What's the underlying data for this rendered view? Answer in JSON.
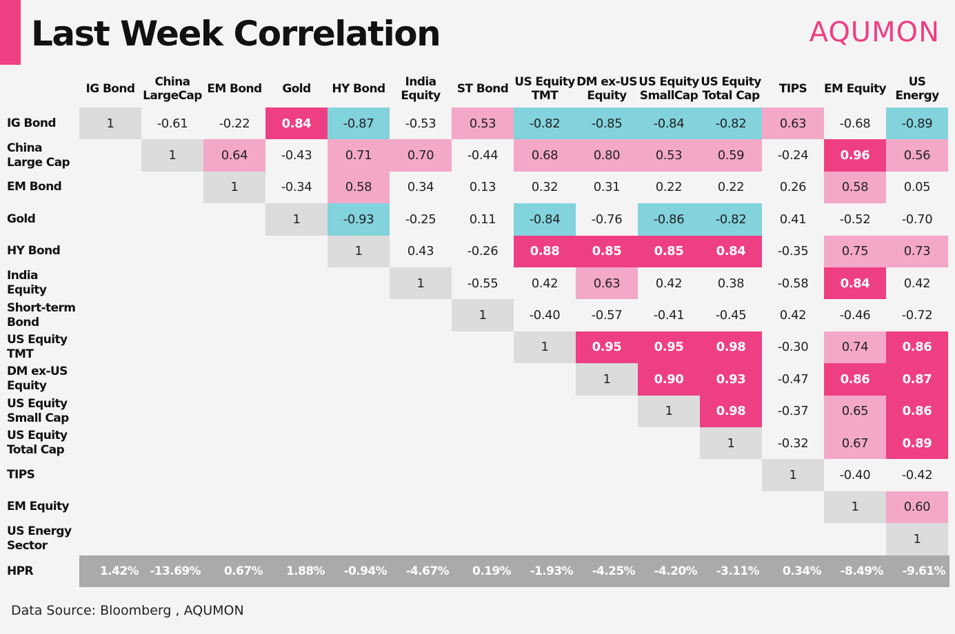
{
  "header": {
    "title": "Last Week Correlation",
    "brand": "AQUMON"
  },
  "colors": {
    "accent": "#ee3f82",
    "positive_strong": "#ee3f82",
    "positive_light": "#f4a8c8",
    "negative": "#82d3dc",
    "diagonal": "#dcdcdc",
    "hpr_band": "#aaaaaa"
  },
  "chart_data": {
    "type": "table",
    "title": "Last Week Correlation",
    "column_headers": [
      "IG Bond",
      "China LargeCap",
      "EM Bond",
      "Gold",
      "HY Bond",
      "India Equity",
      "ST Bond",
      "US Equity TMT",
      "DM ex-US Equity",
      "US Equity SmallCap",
      "US Equity Total Cap",
      "TIPS",
      "EM Equity",
      "US Energy"
    ],
    "row_headers": [
      "IG Bond",
      "China Large Cap",
      "EM Bond",
      "Gold",
      "HY Bond",
      "India Equity",
      "Short-term Bond",
      "US Equity TMT",
      "DM ex-US Equity",
      "US Equity Small Cap",
      "US Equity Total Cap",
      "TIPS",
      "EM Equity",
      "US Energy Sector"
    ],
    "rows": [
      [
        "1",
        "-0.61",
        "-0.22",
        "0.84",
        "-0.87",
        "-0.53",
        "0.53",
        "-0.82",
        "-0.85",
        "-0.84",
        "-0.82",
        "0.63",
        "-0.68",
        "-0.89"
      ],
      [
        "",
        "1",
        "0.64",
        "-0.43",
        "0.71",
        "0.70",
        "-0.44",
        "0.68",
        "0.80",
        "0.53",
        "0.59",
        "-0.24",
        "0.96",
        "0.56"
      ],
      [
        "",
        "",
        "1",
        "-0.34",
        "0.58",
        "0.34",
        "0.13",
        "0.32",
        "0.31",
        "0.22",
        "0.22",
        "0.26",
        "0.58",
        "0.05"
      ],
      [
        "",
        "",
        "",
        "1",
        "-0.93",
        "-0.25",
        "0.11",
        "-0.84",
        "-0.76",
        "-0.86",
        "-0.82",
        "0.41",
        "-0.52",
        "-0.70"
      ],
      [
        "",
        "",
        "",
        "",
        "1",
        "0.43",
        "-0.26",
        "0.88",
        "0.85",
        "0.85",
        "0.84",
        "-0.35",
        "0.75",
        "0.73"
      ],
      [
        "",
        "",
        "",
        "",
        "",
        "1",
        "-0.55",
        "0.42",
        "0.63",
        "0.42",
        "0.38",
        "-0.58",
        "0.84",
        "0.42"
      ],
      [
        "",
        "",
        "",
        "",
        "",
        "",
        "1",
        "-0.40",
        "-0.57",
        "-0.41",
        "-0.45",
        "0.42",
        "-0.46",
        "-0.72"
      ],
      [
        "",
        "",
        "",
        "",
        "",
        "",
        "",
        "1",
        "0.95",
        "0.95",
        "0.98",
        "-0.30",
        "0.74",
        "0.86"
      ],
      [
        "",
        "",
        "",
        "",
        "",
        "",
        "",
        "",
        "1",
        "0.90",
        "0.93",
        "-0.47",
        "0.86",
        "0.87"
      ],
      [
        "",
        "",
        "",
        "",
        "",
        "",
        "",
        "",
        "",
        "1",
        "0.98",
        "-0.37",
        "0.65",
        "0.86"
      ],
      [
        "",
        "",
        "",
        "",
        "",
        "",
        "",
        "",
        "",
        "",
        "1",
        "-0.32",
        "0.67",
        "0.89"
      ],
      [
        "",
        "",
        "",
        "",
        "",
        "",
        "",
        "",
        "",
        "",
        "",
        "1",
        "-0.40",
        "-0.42"
      ],
      [
        "",
        "",
        "",
        "",
        "",
        "",
        "",
        "",
        "",
        "",
        "",
        "",
        "1",
        "0.60"
      ],
      [
        "",
        "",
        "",
        "",
        "",
        "",
        "",
        "",
        "",
        "",
        "",
        "",
        "",
        "1"
      ]
    ],
    "hpr_label": "HPR",
    "hpr_values": [
      "1.42%",
      "-13.69%",
      "0.67%",
      "1.88%",
      "-0.94%",
      "-4.67%",
      "0.19%",
      "-1.93%",
      "-4.25%",
      "-4.20%",
      "-3.11%",
      "0.34%",
      "-8.49%",
      "-9.61%"
    ],
    "highlight_rule": {
      "strong_positive_min": 0.84,
      "light_positive_min": 0.53,
      "negative_max": -0.82
    }
  },
  "footer": {
    "source": "Data Source: Bloomberg , AQUMON"
  }
}
